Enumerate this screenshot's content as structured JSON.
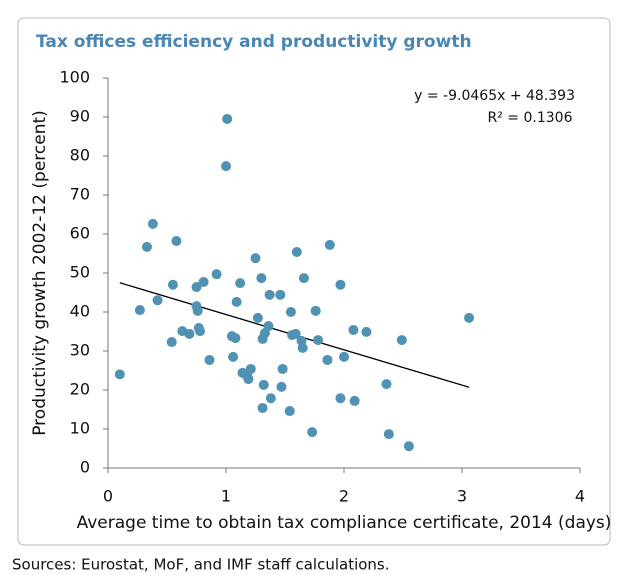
{
  "chart_data": {
    "type": "scatter",
    "title": "Tax offices efficiency and productivity growth",
    "x_label": "Average time to obtain tax compliance certificate, 2014 (days)",
    "y_label": "Productivity growth 2002-12 (percent)",
    "source": "Sources: Eurostat, MoF, and IMF staff calculations.",
    "annotations": [
      "y = -9.0465x + 48.393",
      "R² = 0.1306"
    ],
    "trendline": {
      "slope": -9.0465,
      "intercept": 48.393
    },
    "color": "#4f92b3",
    "title_color": "#4a86b4",
    "xlim": [
      0,
      4
    ],
    "xticks": [
      0,
      1,
      2,
      3,
      4
    ],
    "ylim": [
      0,
      100
    ],
    "yticks": [
      0,
      10,
      20,
      30,
      40,
      50,
      60,
      70,
      80,
      90,
      100
    ],
    "x": [
      0.1,
      0.27,
      0.33,
      0.38,
      0.42,
      0.54,
      0.55,
      0.58,
      0.63,
      0.69,
      0.75,
      0.75,
      0.76,
      0.77,
      0.78,
      0.81,
      0.86,
      0.92,
      1.01,
      1.0,
      1.05,
      1.06,
      1.08,
      1.09,
      1.12,
      1.14,
      1.18,
      1.19,
      1.21,
      1.25,
      1.27,
      1.3,
      1.31,
      1.31,
      1.32,
      1.33,
      1.36,
      1.37,
      1.38,
      1.46,
      1.47,
      1.48,
      1.54,
      1.55,
      1.56,
      1.59,
      1.6,
      1.64,
      1.65,
      1.66,
      1.73,
      1.76,
      1.78,
      1.86,
      1.88,
      1.97,
      1.97,
      2.0,
      2.08,
      2.09,
      2.19,
      2.36,
      2.38,
      2.49,
      2.55,
      3.06
    ],
    "values": [
      24,
      40.5,
      56.7,
      62.6,
      43,
      32.3,
      47,
      58.2,
      35.1,
      34.4,
      46.4,
      41.5,
      40.3,
      35.9,
      35.1,
      47.7,
      27.7,
      49.7,
      89.5,
      77.4,
      33.8,
      28.5,
      33.3,
      42.6,
      47.4,
      24.4,
      23.6,
      22.8,
      25.4,
      53.8,
      38.5,
      48.7,
      33.1,
      15.4,
      21.3,
      34.6,
      36.4,
      44.4,
      17.9,
      44.4,
      20.8,
      25.4,
      14.6,
      40,
      34.1,
      34.4,
      55.4,
      32.6,
      30.8,
      48.7,
      9.2,
      40.3,
      32.8,
      27.7,
      57.2,
      17.9,
      47,
      28.5,
      35.4,
      17.2,
      34.9,
      21.5,
      8.7,
      32.8,
      5.6,
      38.5
    ]
  }
}
